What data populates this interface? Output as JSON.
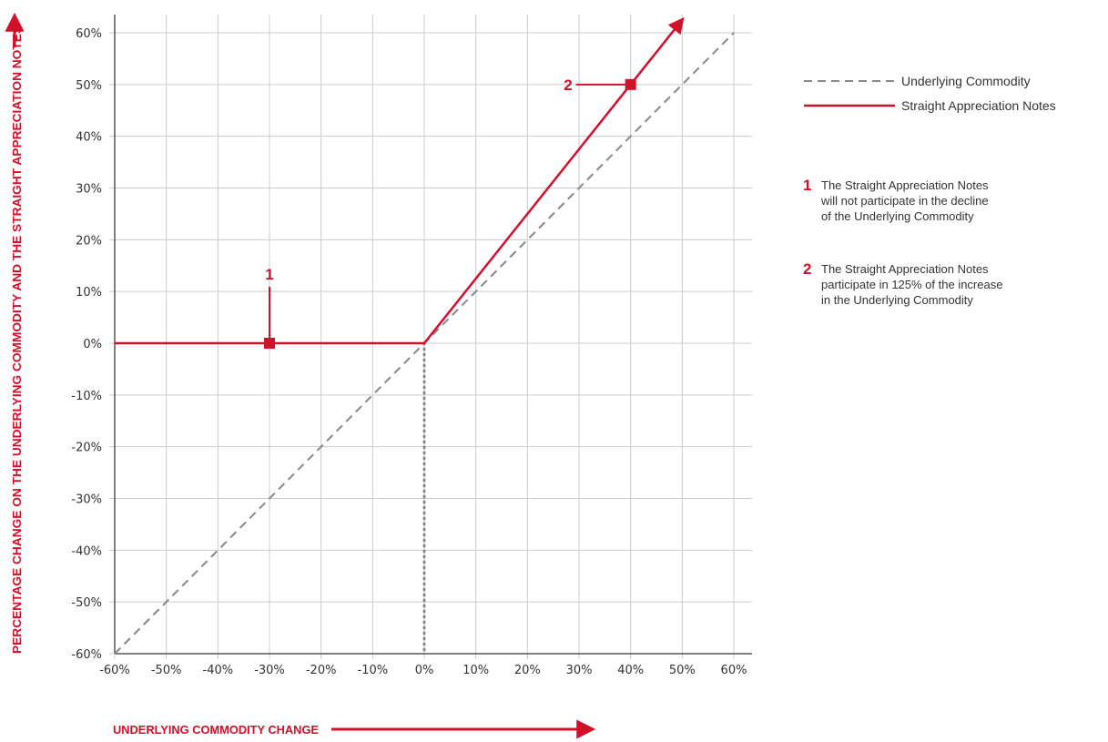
{
  "chart_data": {
    "type": "line",
    "xlabel": "UNDERLYING COMMODITY CHANGE",
    "ylabel": "PERCENTAGE CHANGE ON THE UNDERLYING COMMODITY AND THE STRAIGHT APPRECIATION NOTES",
    "xlim": [
      -60,
      60
    ],
    "ylim": [
      -60,
      60
    ],
    "x_ticks": [
      -60,
      -50,
      -40,
      -30,
      -20,
      -10,
      0,
      10,
      20,
      30,
      40,
      50,
      60
    ],
    "y_ticks": [
      -60,
      -50,
      -40,
      -30,
      -20,
      -10,
      0,
      10,
      20,
      30,
      40,
      50,
      60
    ],
    "x_tick_labels": [
      "-60%",
      "-50%",
      "-40%",
      "-30%",
      "-20%",
      "-10%",
      "0%",
      "10%",
      "20%",
      "30%",
      "40%",
      "50%",
      "60%"
    ],
    "y_tick_labels": [
      "-60%",
      "-50%",
      "-40%",
      "-30%",
      "-20%",
      "-10%",
      "0%",
      "10%",
      "20%",
      "30%",
      "40%",
      "50%",
      "60%"
    ],
    "grid": true,
    "legend_position": "top-right",
    "series": [
      {
        "name": "Underlying Commodity",
        "style": "dashed",
        "color": "#888888",
        "x": [
          -60,
          60
        ],
        "y": [
          -60,
          60
        ]
      },
      {
        "name": "Straight Appreciation Notes",
        "style": "solid",
        "color": "#d2102a",
        "x": [
          -60,
          0,
          50
        ],
        "y": [
          0,
          0,
          62.5
        ]
      }
    ],
    "annotations": [
      {
        "label": "1",
        "x": -30,
        "y": 0,
        "text": "The Straight Appreciation Notes will not participate in the decline of the Underlying Commodity",
        "lines": [
          "The Straight Appreciation Notes",
          "will not participate in the decline",
          "of the Underlying Commodity"
        ]
      },
      {
        "label": "2",
        "x": 40,
        "y": 50,
        "text": "The Straight Appreciation Notes participate in 125% of the increase in the Underlying Commodity",
        "lines": [
          "The Straight Appreciation Notes",
          "participate in 125% of the increase",
          "in the Underlying Commodity"
        ]
      }
    ]
  },
  "colors": {
    "accent": "#d2102a",
    "grid": "#cccccc",
    "axis": "#555555",
    "dashed": "#888888",
    "dotted": "#888888"
  }
}
